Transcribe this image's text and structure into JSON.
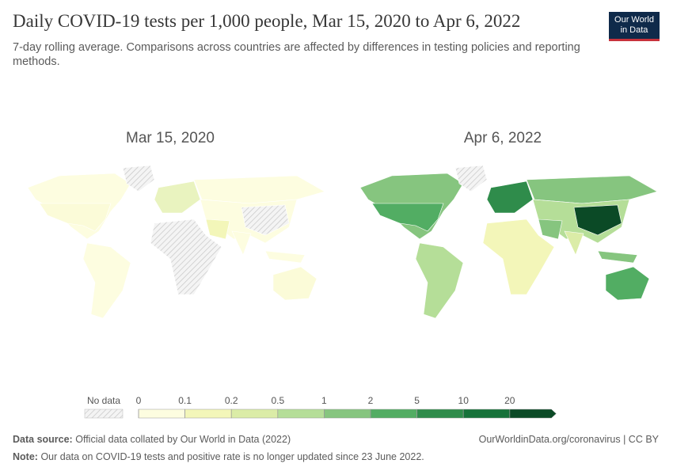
{
  "header": {
    "title": "Daily COVID-19 tests per 1,000 people, Mar 15, 2020 to Apr 6, 2022",
    "subtitle": "7-day rolling average. Comparisons across countries are affected by differences in testing policies and reporting methods.",
    "logo": [
      "Our World",
      "in Data"
    ]
  },
  "maps": [
    {
      "label": "Mar 15, 2020"
    },
    {
      "label": "Apr 6, 2022"
    }
  ],
  "legend": {
    "no_data": "No data",
    "ticks": [
      0,
      0.1,
      0.2,
      0.5,
      1,
      2,
      5,
      10,
      20
    ],
    "colors": [
      "#fdfde0",
      "#f3f6b9",
      "#dbeca7",
      "#b5de98",
      "#86c57f",
      "#52ad63",
      "#2f8c4b",
      "#16723a",
      "#0b4a26"
    ]
  },
  "footer": {
    "source_label": "Data source:",
    "source": "Official data collated by Our World in Data (2022)",
    "url": "OurWorldinData.org/coronavirus | CC BY",
    "note_label": "Note:",
    "note": "Our data on COVID-19 tests and positive rate is no longer updated since 23 June 2022."
  }
}
